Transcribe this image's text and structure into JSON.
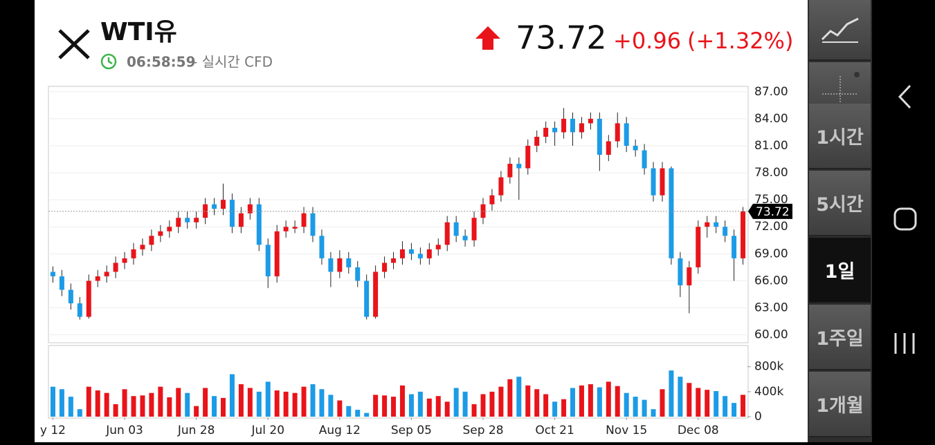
{
  "header": {
    "title": "WTI유",
    "time": "06:58:59",
    "source": "- 실시간 CFD",
    "price": "73.72",
    "change": "+0.96",
    "change_pct": "(+1.32%)"
  },
  "timeframes": [
    "1시간",
    "5시간",
    "1일",
    "1주일",
    "1개월"
  ],
  "selected_timeframe": 2,
  "chart_data": {
    "type": "candlestick",
    "up_color": "#e8141a",
    "down_color": "#1c9be6",
    "grid": true,
    "xlim": [
      -1,
      155
    ],
    "ylim": [
      59.2,
      87.6
    ],
    "yticks": [
      {
        "value": 60,
        "label": "60.00"
      },
      {
        "value": 63,
        "label": "63.00"
      },
      {
        "value": 66,
        "label": "66.00"
      },
      {
        "value": 69,
        "label": "69.00"
      },
      {
        "value": 72,
        "label": "72.00"
      },
      {
        "value": 75,
        "label": "75.00"
      },
      {
        "value": 78,
        "label": "78.00"
      },
      {
        "value": 81,
        "label": "81.00"
      },
      {
        "value": 84,
        "label": "84.00"
      },
      {
        "value": 87,
        "label": "87.00"
      }
    ],
    "xticks": [
      {
        "value": 0,
        "label": "y 12"
      },
      {
        "value": 16,
        "label": "Jun 03"
      },
      {
        "value": 32,
        "label": "Jun 28"
      },
      {
        "value": 48,
        "label": "Jul 20"
      },
      {
        "value": 64,
        "label": "Aug 12"
      },
      {
        "value": 80,
        "label": "Sep 05"
      },
      {
        "value": 96,
        "label": "Sep 28"
      },
      {
        "value": 112,
        "label": "Oct 21"
      },
      {
        "value": 128,
        "label": "Nov 15"
      },
      {
        "value": 144,
        "label": "Dec 08"
      }
    ],
    "last_price": {
      "value": 73.72,
      "label": "73.72"
    },
    "x": [
      0,
      2,
      4,
      6,
      8,
      10,
      12,
      14,
      16,
      18,
      20,
      22,
      24,
      26,
      28,
      30,
      32,
      34,
      36,
      38,
      40,
      42,
      44,
      46,
      48,
      50,
      52,
      54,
      56,
      58,
      60,
      62,
      64,
      66,
      68,
      70,
      72,
      74,
      76,
      78,
      80,
      82,
      84,
      86,
      88,
      90,
      92,
      94,
      96,
      98,
      100,
      102,
      104,
      106,
      108,
      110,
      112,
      114,
      116,
      118,
      120,
      122,
      124,
      126,
      128,
      130,
      132,
      134,
      136,
      138,
      140,
      142,
      144,
      146,
      148,
      150,
      152,
      154
    ],
    "candles": [
      [
        67.0,
        67.6,
        65.8,
        66.5
      ],
      [
        66.5,
        67.2,
        64.3,
        65.0
      ],
      [
        65.0,
        65.7,
        62.8,
        63.5
      ],
      [
        63.5,
        64.2,
        61.7,
        62.0
      ],
      [
        62.0,
        66.7,
        61.8,
        66.0
      ],
      [
        66.0,
        67.2,
        65.3,
        66.5
      ],
      [
        66.5,
        67.7,
        65.8,
        67.0
      ],
      [
        67.0,
        68.7,
        66.3,
        68.0
      ],
      [
        68.0,
        69.2,
        67.3,
        68.5
      ],
      [
        68.5,
        70.2,
        67.8,
        69.5
      ],
      [
        69.5,
        70.7,
        68.8,
        70.0
      ],
      [
        70.0,
        71.7,
        69.3,
        71.0
      ],
      [
        71.0,
        72.2,
        70.3,
        71.5
      ],
      [
        71.5,
        72.7,
        70.8,
        72.0
      ],
      [
        72.0,
        73.7,
        71.3,
        73.0
      ],
      [
        73.0,
        73.7,
        71.8,
        72.5
      ],
      [
        72.5,
        73.7,
        71.8,
        73.0
      ],
      [
        73.0,
        75.2,
        72.3,
        74.5
      ],
      [
        74.5,
        75.2,
        73.3,
        74.0
      ],
      [
        74.0,
        76.8,
        73.3,
        75.0
      ],
      [
        75.0,
        75.7,
        71.3,
        72.0
      ],
      [
        72.0,
        74.2,
        71.3,
        73.5
      ],
      [
        73.5,
        75.2,
        72.8,
        74.5
      ],
      [
        74.5,
        75.2,
        69.3,
        70.0
      ],
      [
        70.0,
        70.7,
        65.2,
        66.5
      ],
      [
        66.5,
        72.2,
        65.8,
        71.5
      ],
      [
        71.5,
        72.7,
        70.8,
        72.0
      ],
      [
        71.8,
        72.7,
        71.3,
        72.0
      ],
      [
        72.0,
        74.2,
        71.3,
        73.5
      ],
      [
        73.5,
        74.2,
        70.3,
        71.0
      ],
      [
        71.0,
        71.7,
        67.8,
        68.5
      ],
      [
        68.5,
        69.2,
        65.3,
        67.0
      ],
      [
        67.0,
        69.4,
        66.3,
        68.5
      ],
      [
        68.5,
        69.2,
        66.8,
        67.5
      ],
      [
        67.5,
        68.2,
        65.3,
        66.0
      ],
      [
        66.0,
        66.7,
        61.7,
        62.0
      ],
      [
        62.0,
        67.7,
        61.8,
        67.0
      ],
      [
        67.0,
        68.7,
        66.3,
        68.0
      ],
      [
        68.0,
        69.2,
        67.3,
        68.5
      ],
      [
        68.5,
        70.4,
        67.8,
        69.5
      ],
      [
        69.5,
        70.2,
        68.3,
        69.0
      ],
      [
        69.0,
        69.7,
        67.8,
        68.5
      ],
      [
        68.5,
        70.2,
        67.8,
        69.5
      ],
      [
        69.5,
        70.7,
        68.8,
        70.0
      ],
      [
        70.0,
        73.2,
        69.3,
        72.5
      ],
      [
        72.5,
        73.2,
        70.3,
        71.0
      ],
      [
        71.0,
        71.7,
        69.8,
        70.5
      ],
      [
        70.5,
        73.7,
        69.8,
        73.0
      ],
      [
        73.0,
        75.2,
        72.3,
        74.5
      ],
      [
        74.5,
        76.2,
        73.8,
        75.5
      ],
      [
        75.5,
        78.2,
        74.8,
        77.5
      ],
      [
        77.5,
        79.7,
        76.8,
        79.0
      ],
      [
        79.0,
        79.7,
        75.0,
        78.5
      ],
      [
        78.5,
        81.7,
        77.8,
        81.0
      ],
      [
        81.0,
        82.7,
        80.3,
        82.0
      ],
      [
        82.0,
        83.7,
        81.3,
        83.0
      ],
      [
        83.0,
        83.7,
        81.0,
        82.5
      ],
      [
        82.5,
        85.2,
        81.8,
        84.0
      ],
      [
        84.0,
        84.7,
        81.0,
        82.5
      ],
      [
        82.5,
        84.2,
        81.8,
        83.5
      ],
      [
        83.5,
        84.7,
        82.8,
        84.0
      ],
      [
        84.0,
        84.7,
        78.2,
        80.0
      ],
      [
        80.0,
        82.2,
        79.3,
        81.5
      ],
      [
        81.5,
        84.7,
        80.8,
        83.5
      ],
      [
        83.5,
        84.2,
        80.3,
        81.0
      ],
      [
        81.0,
        81.7,
        79.8,
        80.5
      ],
      [
        80.5,
        81.2,
        77.8,
        78.5
      ],
      [
        78.5,
        79.2,
        74.8,
        75.5
      ],
      [
        75.5,
        79.2,
        74.8,
        78.5
      ],
      [
        78.5,
        78.7,
        67.8,
        68.5
      ],
      [
        68.5,
        69.2,
        64.2,
        65.5
      ],
      [
        65.5,
        68.2,
        62.4,
        67.5
      ],
      [
        67.5,
        72.7,
        66.8,
        72.0
      ],
      [
        72.0,
        73.2,
        70.8,
        72.5
      ],
      [
        72.5,
        73.2,
        71.3,
        72.0
      ],
      [
        72.0,
        72.7,
        70.3,
        71.0
      ],
      [
        71.0,
        71.7,
        66.0,
        68.5
      ],
      [
        68.5,
        74.2,
        67.8,
        73.72
      ]
    ],
    "volume": {
      "ylim": [
        0,
        1140000
      ],
      "yticks": [
        {
          "value": 0,
          "label": "0"
        },
        {
          "value": 400000,
          "label": "400k"
        },
        {
          "value": 800000,
          "label": "800k"
        }
      ],
      "values": [
        480000,
        440000,
        320000,
        120000,
        480000,
        420000,
        380000,
        200000,
        440000,
        330000,
        340000,
        380000,
        480000,
        310000,
        460000,
        380000,
        170000,
        460000,
        330000,
        300000,
        680000,
        520000,
        460000,
        400000,
        560000,
        420000,
        400000,
        380000,
        480000,
        520000,
        440000,
        350000,
        260000,
        170000,
        110000,
        60000,
        350000,
        340000,
        320000,
        500000,
        360000,
        400000,
        290000,
        330000,
        240000,
        460000,
        400000,
        200000,
        360000,
        400000,
        480000,
        600000,
        640000,
        500000,
        440000,
        360000,
        240000,
        280000,
        460000,
        500000,
        520000,
        470000,
        560000,
        490000,
        380000,
        320000,
        270000,
        120000,
        440000,
        740000,
        640000,
        540000,
        460000,
        430000,
        410000,
        330000,
        220000,
        350000
      ]
    }
  }
}
